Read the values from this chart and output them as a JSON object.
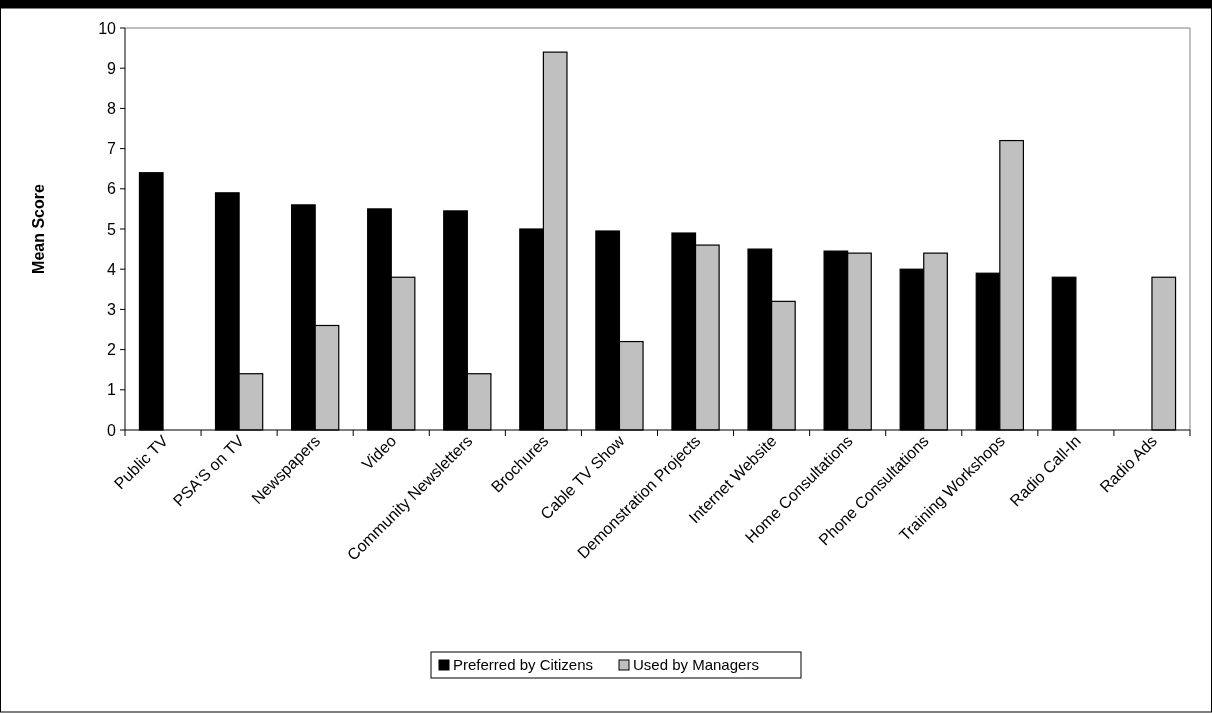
{
  "chart_data": {
    "type": "bar",
    "ylabel": "Mean Score",
    "categories": [
      "Public TV",
      "PSA'S on TV",
      "Newspapers",
      "Video",
      "Community Newsletters",
      "Brochures",
      "Cable TV Show",
      "Demonstration Projects",
      "Internet Website",
      "Home Consultations",
      "Phone Consultations",
      "Training Workshops",
      "Radio Call-In",
      "Radio Ads"
    ],
    "series": [
      {
        "name": "Preferred by Citizens",
        "color": "#000000",
        "values": [
          6.4,
          5.9,
          5.6,
          5.5,
          5.45,
          5.0,
          4.95,
          4.9,
          4.5,
          4.45,
          4.0,
          3.9,
          3.8,
          null
        ]
      },
      {
        "name": "Used by Managers",
        "color": "#c0c0c0",
        "values": [
          null,
          1.4,
          2.6,
          3.8,
          1.4,
          9.4,
          2.2,
          4.6,
          3.2,
          4.4,
          4.4,
          7.2,
          null,
          3.8
        ]
      }
    ],
    "ylim": [
      0,
      10
    ],
    "yticks": [
      0,
      1,
      2,
      3,
      4,
      5,
      6,
      7,
      8,
      9,
      10
    ],
    "legend": "bottom"
  }
}
